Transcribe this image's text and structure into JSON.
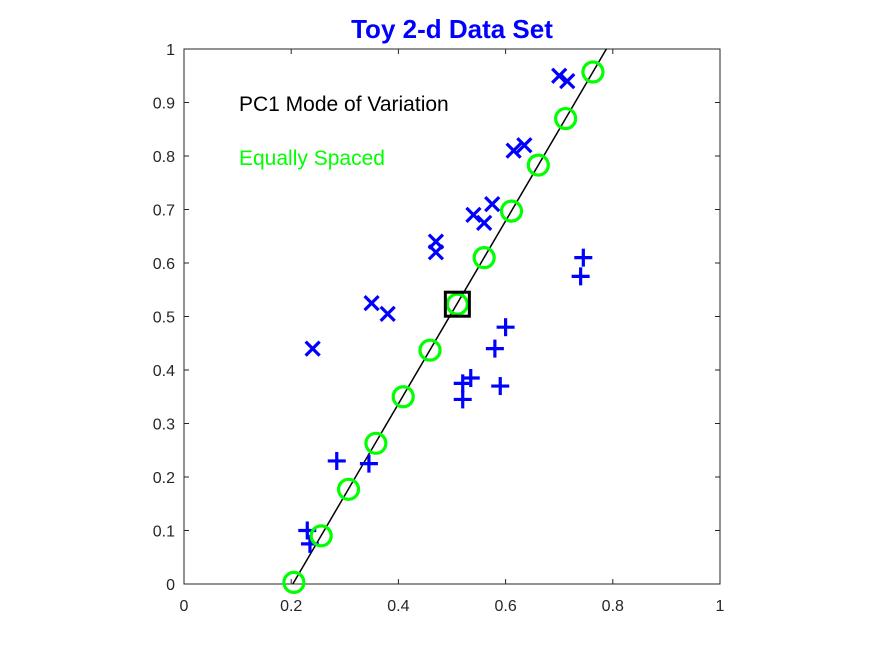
{
  "chart_data": {
    "type": "scatter",
    "title": "Toy 2-d Data Set",
    "title_color": "#0000ff",
    "xlim": [
      0,
      1
    ],
    "ylim": [
      0,
      1
    ],
    "x_ticks": [
      "0",
      "0.2",
      "0.4",
      "0.6",
      "0.8",
      "1"
    ],
    "y_ticks": [
      "0",
      "0.1",
      "0.2",
      "0.3",
      "0.4",
      "0.5",
      "0.6",
      "0.7",
      "0.8",
      "0.9",
      "1"
    ],
    "grid": false,
    "annotations": [
      {
        "text": "PC1 Mode of Variation",
        "color": "#000000"
      },
      {
        "text": "Equally Spaced",
        "color": "#00ff00"
      }
    ],
    "series": [
      {
        "marker": "x",
        "color": "#0000ff",
        "points": [
          [
            0.24,
            0.44
          ],
          [
            0.35,
            0.525
          ],
          [
            0.38,
            0.505
          ],
          [
            0.47,
            0.62
          ],
          [
            0.47,
            0.64
          ],
          [
            0.54,
            0.69
          ],
          [
            0.56,
            0.675
          ],
          [
            0.575,
            0.71
          ],
          [
            0.615,
            0.81
          ],
          [
            0.635,
            0.82
          ],
          [
            0.7,
            0.95
          ],
          [
            0.715,
            0.94
          ]
        ]
      },
      {
        "marker": "+",
        "color": "#0000ff",
        "points": [
          [
            0.23,
            0.1
          ],
          [
            0.235,
            0.075
          ],
          [
            0.285,
            0.23
          ],
          [
            0.345,
            0.225
          ],
          [
            0.52,
            0.345
          ],
          [
            0.52,
            0.375
          ],
          [
            0.535,
            0.385
          ],
          [
            0.58,
            0.44
          ],
          [
            0.59,
            0.37
          ],
          [
            0.6,
            0.48
          ],
          [
            0.74,
            0.575
          ],
          [
            0.745,
            0.61
          ]
        ]
      },
      {
        "marker": "o",
        "color": "#00ff00",
        "points": [
          [
            0.205,
            0.003
          ],
          [
            0.256,
            0.09
          ],
          [
            0.307,
            0.177
          ],
          [
            0.358,
            0.263
          ],
          [
            0.409,
            0.35
          ],
          [
            0.459,
            0.437
          ],
          [
            0.51,
            0.523
          ],
          [
            0.56,
            0.61
          ],
          [
            0.611,
            0.697
          ],
          [
            0.661,
            0.783
          ],
          [
            0.712,
            0.87
          ],
          [
            0.763,
            0.957
          ]
        ]
      }
    ],
    "line": {
      "color": "#000000",
      "points": [
        [
          0.203,
          0.0
        ],
        [
          0.788,
          1.0
        ]
      ]
    },
    "highlight": {
      "marker": "square",
      "color": "#000000",
      "point": [
        0.51,
        0.523
      ]
    }
  }
}
